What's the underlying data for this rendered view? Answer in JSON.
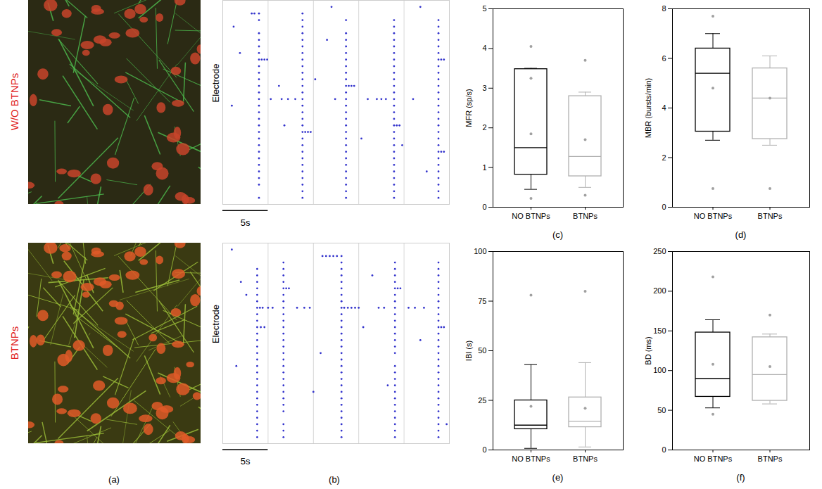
{
  "chart_data": [
    {
      "type": "image",
      "panel_label": "(a)",
      "rows": [
        "W/O BTNPs",
        "BTNPs"
      ]
    },
    {
      "type": "raster",
      "panel_label": "(b)",
      "ylabel": "Electrode",
      "xlim": [
        0,
        25
      ],
      "xticks": [
        0,
        5,
        10,
        15,
        20,
        25
      ],
      "ylim": [
        0,
        31
      ],
      "grid": true,
      "tick_labels": false,
      "color": "#3333cc",
      "scale_bar": {
        "length": 5,
        "label": "5s"
      },
      "rasters": [
        {
          "bursts": [
            {
              "t": 4.0,
              "electrodes": [
                1,
                3,
                4,
                5,
                6,
                7,
                8,
                9,
                10,
                11,
                12,
                13,
                14,
                15,
                16,
                17,
                18,
                19,
                20,
                21,
                22,
                23,
                24,
                25,
                26,
                28,
                29
              ]
            },
            {
              "t": 8.8,
              "electrodes": [
                1,
                2,
                3,
                4,
                5,
                6,
                7,
                8,
                9,
                10,
                11,
                12,
                13,
                14,
                15,
                16,
                17,
                18,
                19,
                20,
                21,
                22,
                23,
                24,
                25,
                26,
                27,
                28,
                29
              ]
            },
            {
              "t": 13.6,
              "electrodes": [
                1,
                2,
                3,
                4,
                5,
                6,
                7,
                8,
                9,
                10,
                11,
                12,
                13,
                14,
                15,
                16,
                17,
                18,
                19,
                20,
                21,
                22,
                23,
                24,
                25,
                26,
                28
              ]
            },
            {
              "t": 18.9,
              "electrodes": [
                1,
                2,
                3,
                4,
                5,
                6,
                7,
                8,
                9,
                10,
                11,
                12,
                13,
                14,
                15,
                16,
                17,
                18,
                19,
                20,
                21,
                22,
                23,
                24,
                25,
                26,
                27,
                28
              ]
            },
            {
              "t": 23.8,
              "electrodes": [
                1,
                2,
                3,
                4,
                5,
                6,
                7,
                8,
                9,
                10,
                11,
                12,
                13,
                14,
                15,
                16,
                17,
                18,
                19,
                20,
                21,
                22,
                23,
                24,
                25,
                26,
                27,
                28
              ]
            }
          ],
          "spikes": [
            [
              1.2,
              27
            ],
            [
              1.0,
              15
            ],
            [
              1.9,
              23
            ],
            [
              3.2,
              29
            ],
            [
              3.5,
              29
            ],
            [
              4.3,
              22
            ],
            [
              4.6,
              22
            ],
            [
              4.9,
              22
            ],
            [
              5.3,
              16
            ],
            [
              6.5,
              16
            ],
            [
              7.2,
              16
            ],
            [
              8.0,
              16
            ],
            [
              6.8,
              12
            ],
            [
              6.2,
              18
            ],
            [
              9.1,
              11
            ],
            [
              9.4,
              11
            ],
            [
              9.7,
              11
            ],
            [
              10.2,
              19
            ],
            [
              11.5,
              25
            ],
            [
              12.4,
              16
            ],
            [
              12.0,
              30
            ],
            [
              13.9,
              18
            ],
            [
              14.2,
              18
            ],
            [
              14.5,
              18
            ],
            [
              16.0,
              16
            ],
            [
              17.0,
              16
            ],
            [
              17.5,
              16
            ],
            [
              18.0,
              16
            ],
            [
              15.3,
              10
            ],
            [
              19.2,
              12
            ],
            [
              19.5,
              12
            ],
            [
              19.8,
              9
            ],
            [
              21.0,
              16
            ],
            [
              21.8,
              30
            ],
            [
              22.5,
              5
            ],
            [
              24.1,
              8
            ],
            [
              24.4,
              8
            ],
            [
              24.1,
              22
            ],
            [
              24.4,
              22
            ]
          ]
        },
        {
          "bursts": [
            {
              "t": 3.8,
              "electrodes": [
                1,
                2,
                3,
                4,
                5,
                6,
                7,
                8,
                9,
                10,
                11,
                12,
                13,
                14,
                15,
                16,
                17,
                18,
                19,
                20,
                21,
                22,
                23,
                24,
                25,
                26,
                27
              ]
            },
            {
              "t": 6.7,
              "electrodes": [
                1,
                2,
                3,
                5,
                6,
                7,
                8,
                9,
                10,
                11,
                12,
                13,
                14,
                15,
                16,
                17,
                18,
                19,
                20,
                21,
                22,
                23,
                24,
                25,
                26,
                27,
                28
              ]
            },
            {
              "t": 13.1,
              "electrodes": [
                1,
                2,
                3,
                4,
                5,
                6,
                7,
                8,
                9,
                10,
                11,
                12,
                13,
                14,
                15,
                16,
                17,
                18,
                19,
                20,
                21,
                22,
                23,
                24,
                25,
                26,
                27,
                28,
                29
              ]
            },
            {
              "t": 19.0,
              "electrodes": [
                1,
                2,
                3,
                4,
                5,
                6,
                7,
                8,
                9,
                10,
                11,
                12,
                14,
                15,
                16,
                17,
                18,
                19,
                20,
                21,
                22,
                23,
                24,
                25,
                26,
                27,
                28
              ]
            },
            {
              "t": 23.8,
              "electrodes": [
                1,
                2,
                3,
                4,
                5,
                6,
                7,
                8,
                9,
                10,
                11,
                12,
                13,
                14,
                15,
                16,
                17,
                18,
                19,
                20,
                21,
                22,
                23,
                24,
                25,
                26,
                27,
                28
              ]
            }
          ],
          "spikes": [
            [
              1.0,
              30
            ],
            [
              2.0,
              25
            ],
            [
              2.6,
              23
            ],
            [
              1.5,
              12
            ],
            [
              4.1,
              21
            ],
            [
              4.4,
              21
            ],
            [
              5.0,
              21
            ],
            [
              5.5,
              21
            ],
            [
              4.2,
              18
            ],
            [
              4.6,
              18
            ],
            [
              7.0,
              24
            ],
            [
              7.3,
              24
            ],
            [
              8.2,
              21
            ],
            [
              9.0,
              21
            ],
            [
              9.6,
              21
            ],
            [
              10.0,
              8
            ],
            [
              10.8,
              14
            ],
            [
              11.0,
              29
            ],
            [
              11.4,
              29
            ],
            [
              11.8,
              29
            ],
            [
              12.2,
              29
            ],
            [
              12.6,
              29
            ],
            [
              13.4,
              21
            ],
            [
              13.8,
              21
            ],
            [
              14.2,
              21
            ],
            [
              14.6,
              21
            ],
            [
              15.0,
              21
            ],
            [
              15.5,
              18
            ],
            [
              16.5,
              26
            ],
            [
              17.2,
              21
            ],
            [
              17.8,
              21
            ],
            [
              18.2,
              9
            ],
            [
              19.3,
              24
            ],
            [
              19.6,
              24
            ],
            [
              20.5,
              21
            ],
            [
              21.2,
              21
            ],
            [
              21.8,
              16
            ],
            [
              22.2,
              21
            ],
            [
              24.1,
              18
            ],
            [
              24.4,
              18
            ],
            [
              24.7,
              3
            ]
          ]
        }
      ]
    },
    {
      "type": "box",
      "panel_label": "(c)",
      "ylabel": "MFR (sp/s)",
      "ylim": [
        0,
        5
      ],
      "yticks": [
        0,
        1,
        2,
        3,
        4,
        5
      ],
      "categories": [
        "NO BTNPs",
        "BTNPs"
      ],
      "boxes": [
        {
          "color": "#000000",
          "whisker_low": 0.45,
          "q1": 0.82,
          "median": 1.5,
          "q3": 3.48,
          "whisker_high": 3.5,
          "points": [
            4.05,
            3.25,
            1.85,
            0.22
          ]
        },
        {
          "color": "#b0b0b0",
          "whisker_low": 0.5,
          "q1": 0.78,
          "median": 1.28,
          "q3": 2.8,
          "whisker_high": 2.9,
          "points": [
            3.7,
            1.7,
            0.3
          ]
        }
      ]
    },
    {
      "type": "box",
      "panel_label": "(d)",
      "ylabel": "MBR (bursts/min)",
      "ylim": [
        0,
        8
      ],
      "yticks": [
        0,
        2,
        4,
        6,
        8
      ],
      "categories": [
        "NO BTNPs",
        "BTNPs"
      ],
      "boxes": [
        {
          "color": "#000000",
          "whisker_low": 2.7,
          "q1": 3.05,
          "median": 5.4,
          "q3": 6.4,
          "whisker_high": 7.0,
          "points": [
            7.7,
            4.8,
            0.75
          ]
        },
        {
          "color": "#b0b0b0",
          "whisker_low": 2.5,
          "q1": 2.75,
          "median": 4.4,
          "q3": 5.6,
          "whisker_high": 6.1,
          "points": [
            4.4,
            0.75
          ]
        }
      ]
    },
    {
      "type": "box",
      "panel_label": "(e)",
      "ylabel": "IBI (s)",
      "ylim": [
        0,
        100
      ],
      "yticks": [
        0,
        25,
        50,
        75,
        100
      ],
      "categories": [
        "NO BTNPs",
        "BTNPs"
      ],
      "boxes": [
        {
          "color": "#000000",
          "whisker_low": 0.8,
          "q1": 10.5,
          "median": 12.5,
          "q3": 25,
          "whisker_high": 43,
          "points": [
            78,
            22
          ]
        },
        {
          "color": "#b0b0b0",
          "whisker_low": 1.5,
          "q1": 11.5,
          "median": 14.5,
          "q3": 26.5,
          "whisker_high": 44,
          "points": [
            80,
            21
          ]
        }
      ]
    },
    {
      "type": "box",
      "panel_label": "(f)",
      "ylabel": "BD (ms)",
      "ylim": [
        0,
        250
      ],
      "yticks": [
        0,
        50,
        100,
        150,
        200,
        250
      ],
      "categories": [
        "NO BTNPs",
        "BTNPs"
      ],
      "boxes": [
        {
          "color": "#000000",
          "whisker_low": 53,
          "q1": 67,
          "median": 90,
          "q3": 148,
          "whisker_high": 164,
          "points": [
            218,
            108,
            45
          ]
        },
        {
          "color": "#b0b0b0",
          "whisker_low": 58,
          "q1": 62,
          "median": 95,
          "q3": 142,
          "whisker_high": 146,
          "points": [
            170,
            105
          ]
        }
      ]
    }
  ]
}
